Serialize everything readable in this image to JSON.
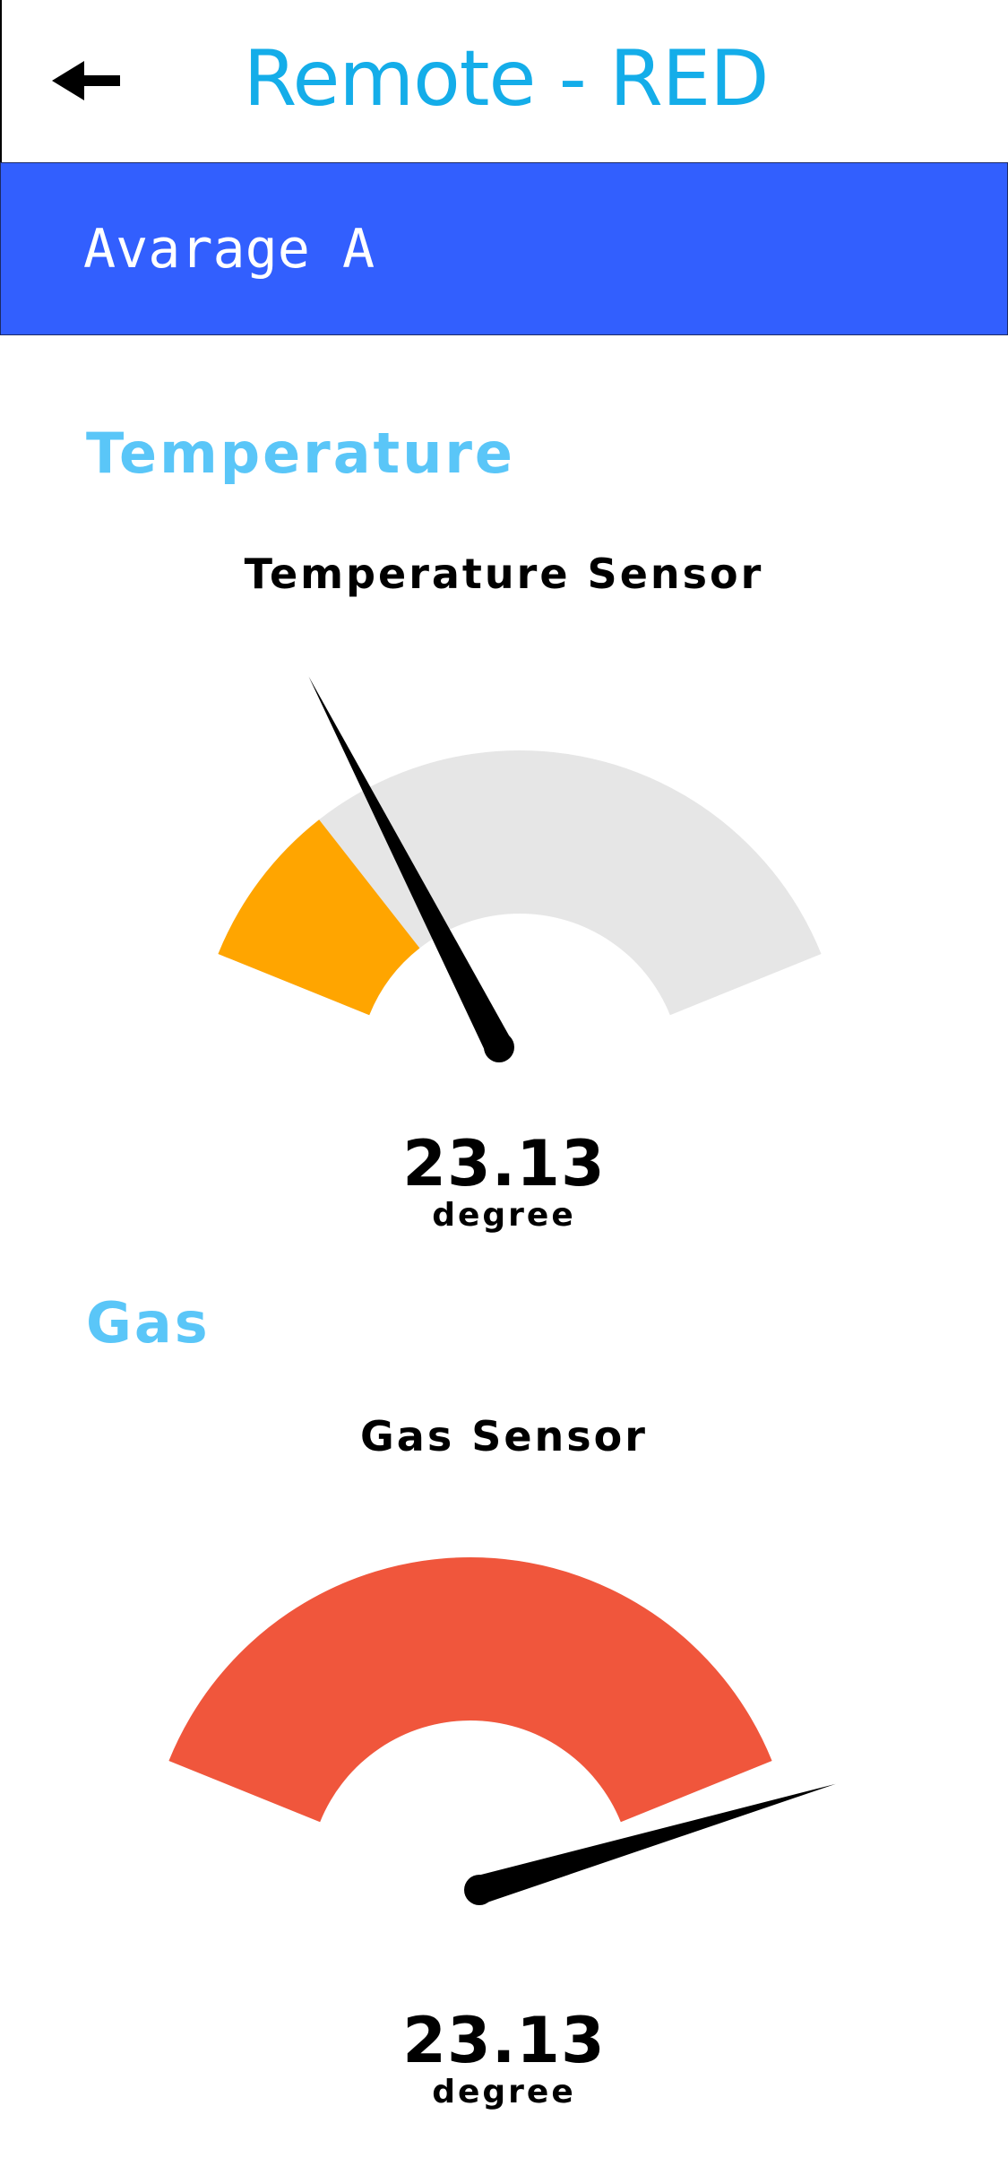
{
  "header": {
    "title": "Remote - RED",
    "back_icon": "arrow-left-icon"
  },
  "selector": {
    "label": "Avarage A"
  },
  "sections": [
    {
      "heading": "Temperature",
      "gauge": {
        "title": "Temperature Sensor",
        "value_text": "23.13",
        "unit": "degree",
        "fill_fraction": 0.22,
        "needle_fraction": 0.3,
        "fill_color": "#ffa500",
        "track_color": "#e6e6e6"
      }
    },
    {
      "heading": "Gas",
      "gauge": {
        "title": "Gas Sensor",
        "value_text": "23.13",
        "unit": "degree",
        "fill_fraction": 1.0,
        "needle_fraction": 1.04,
        "fill_color": "#f0563c",
        "track_color": "#e6e6e6"
      }
    }
  ],
  "colors": {
    "title_blue": "#14ade9",
    "bar_blue": "#325ffe",
    "section_blue": "#5ac6f8"
  }
}
